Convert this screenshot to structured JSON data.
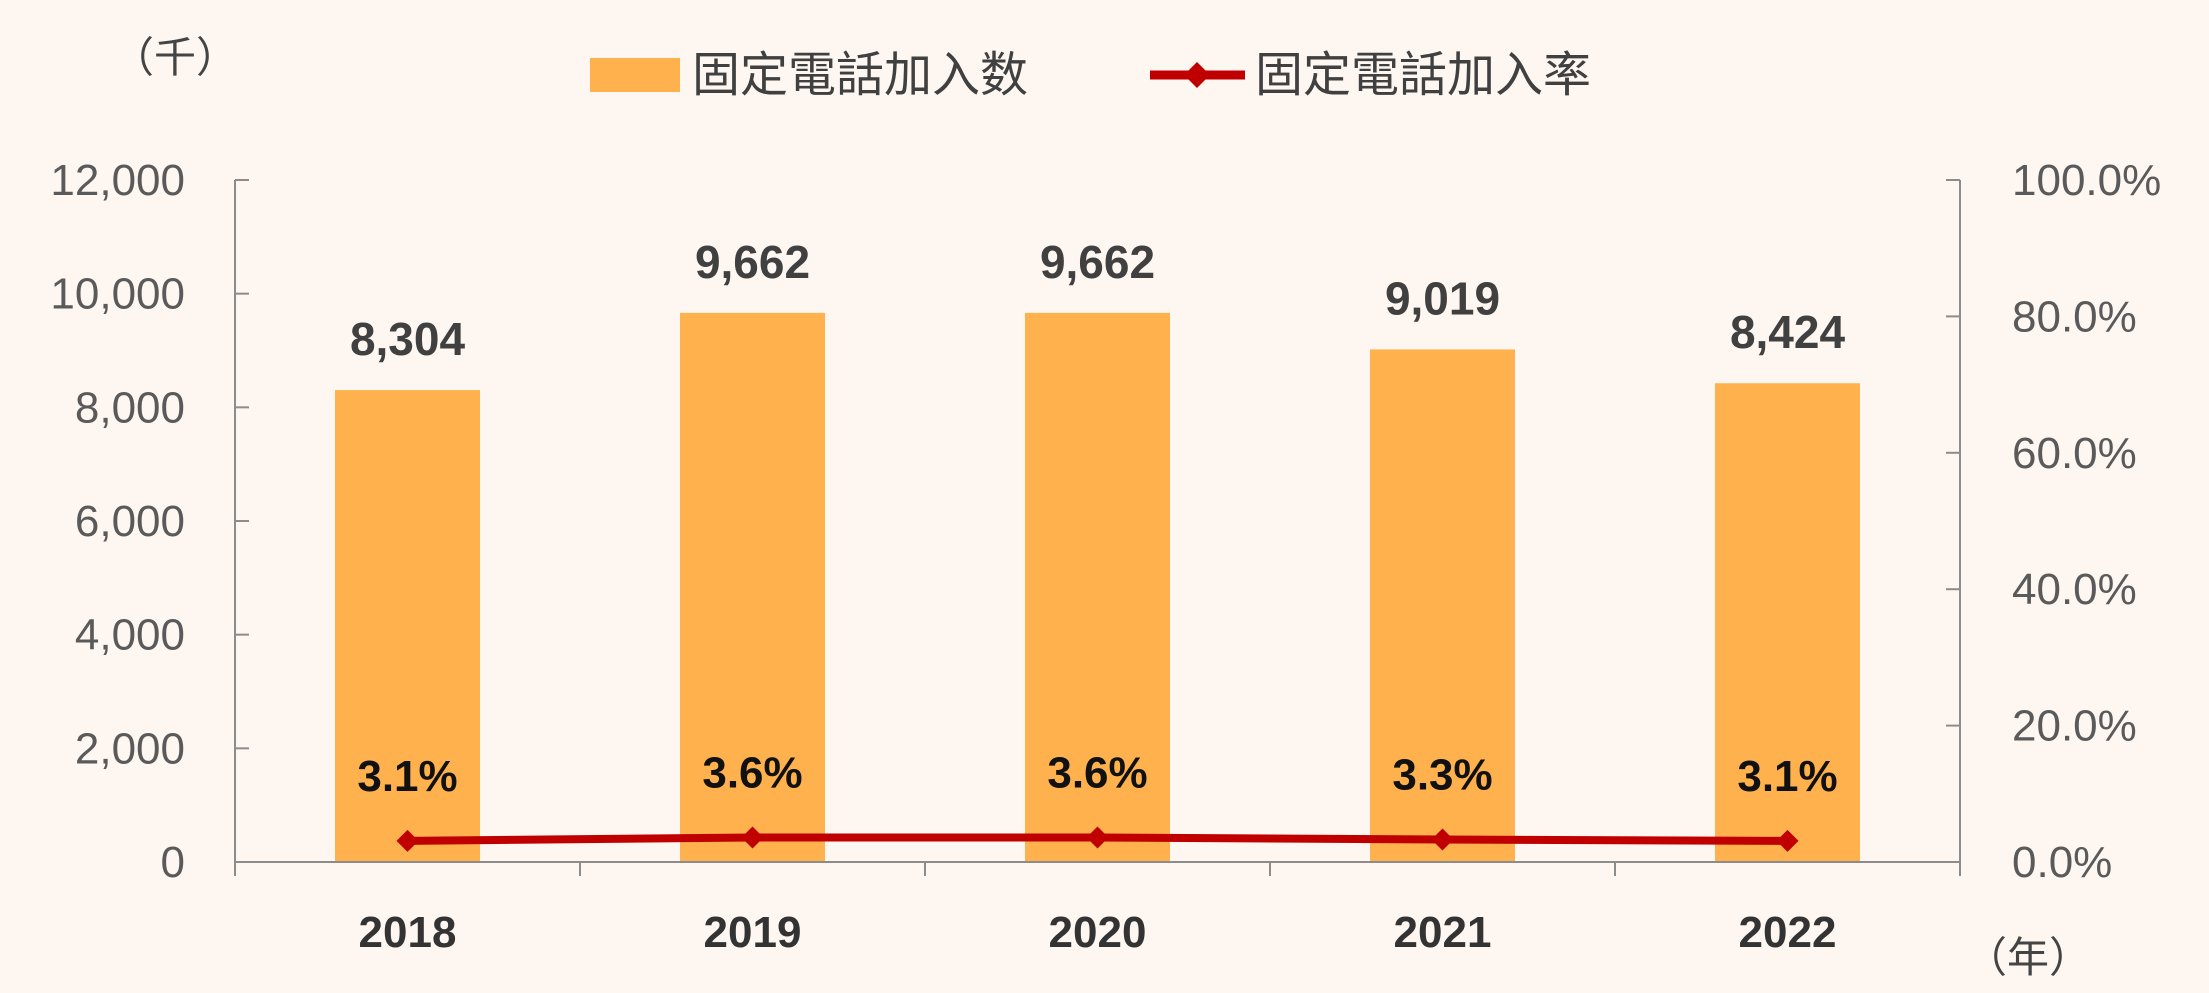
{
  "chart_data": {
    "type": "bar",
    "categories": [
      "2018",
      "2019",
      "2020",
      "2021",
      "2022"
    ],
    "series": [
      {
        "name": "固定電話加入数",
        "type": "bar",
        "axis": "left",
        "values": [
          8304,
          9662,
          9662,
          9019,
          8424
        ],
        "labels": [
          "8,304",
          "9,662",
          "9,662",
          "9,019",
          "8,424"
        ],
        "color": "#ffb14e"
      },
      {
        "name": "固定電話加入率",
        "type": "line",
        "axis": "right",
        "values": [
          3.1,
          3.6,
          3.6,
          3.3,
          3.1
        ],
        "labels": [
          "3.1%",
          "3.6%",
          "3.6%",
          "3.3%",
          "3.1%"
        ],
        "color": "#c00000"
      }
    ],
    "y_left": {
      "range": [
        0,
        12000
      ],
      "ticks": [
        0,
        2000,
        4000,
        6000,
        8000,
        10000,
        12000
      ],
      "tick_labels": [
        "0",
        "2,000",
        "4,000",
        "6,000",
        "8,000",
        "10,000",
        "12,000"
      ],
      "unit": "（千）"
    },
    "y_right": {
      "range": [
        0,
        100
      ],
      "ticks": [
        0,
        20,
        40,
        60,
        80,
        100
      ],
      "tick_labels": [
        "0.0%",
        "20.0%",
        "40.0%",
        "60.0%",
        "80.0%",
        "100.0%"
      ]
    },
    "x_unit": "（年）",
    "legend": {
      "position": "top"
    },
    "grid": false,
    "background": "#fdf6f1"
  }
}
